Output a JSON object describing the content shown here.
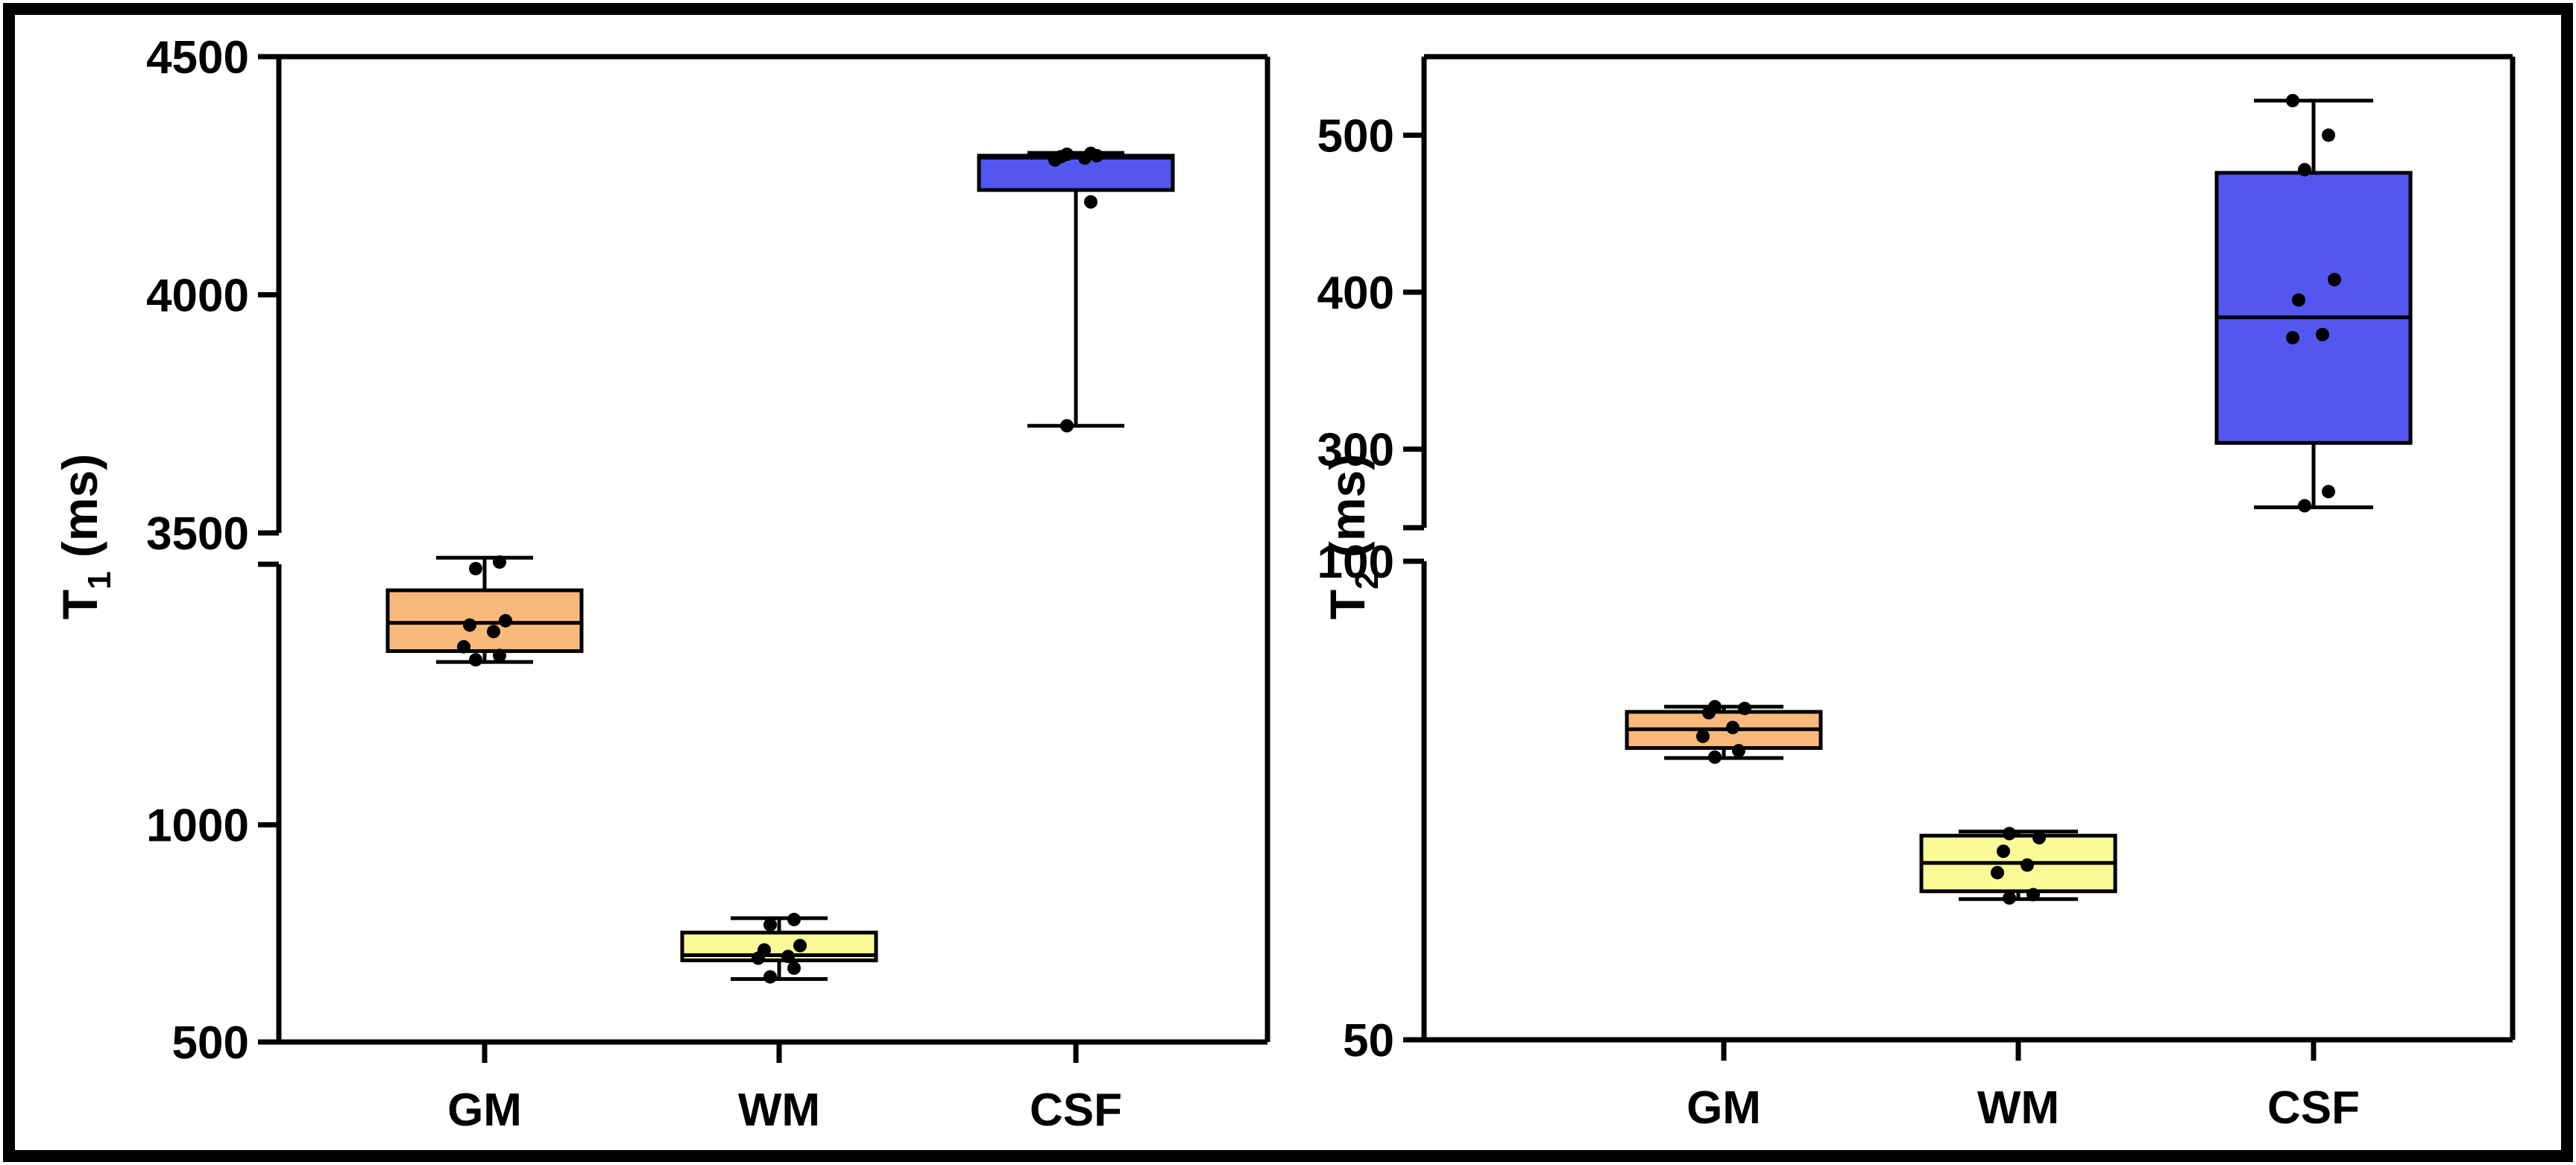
{
  "colors": {
    "GM": "#f9b97a",
    "WM": "#fafa98",
    "CSF": "#5357f0",
    "frame": "#000000"
  },
  "chart_data": [
    {
      "type": "box",
      "ylabel_main": "T",
      "ylabel_sub": "1",
      "ylabel_unit": " (ms)",
      "categories": [
        "GM",
        "WM",
        "CSF"
      ],
      "y_scale": "broken",
      "y_lower_segment": {
        "range": [
          500,
          1600
        ],
        "ticks": [
          500,
          1000
        ]
      },
      "y_upper_segment": {
        "range": [
          3500,
          4500
        ],
        "ticks": [
          3500,
          4000,
          4500
        ]
      },
      "boxes": [
        {
          "category": "GM",
          "min": 1375,
          "q1": 1400,
          "median": 1465,
          "q3": 1540,
          "max": 1615,
          "points": [
            1380,
            1390,
            1410,
            1445,
            1460,
            1470,
            1590,
            1605
          ]
        },
        {
          "category": "WM",
          "min": 645,
          "q1": 688,
          "median": 700,
          "q3": 752,
          "max": 785,
          "points": [
            650,
            670,
            693,
            697,
            712,
            722,
            770,
            782
          ]
        },
        {
          "category": "CSF",
          "min": 3725,
          "q1": 4220,
          "median": 4288,
          "q3": 4292,
          "max": 4298,
          "points": [
            3725,
            4195,
            4283,
            4287,
            4290,
            4292,
            4295,
            4297
          ]
        }
      ]
    },
    {
      "type": "box",
      "ylabel_main": "T",
      "ylabel_sub": "2",
      "ylabel_unit": " (ms)",
      "categories": [
        "GM",
        "WM",
        "CSF"
      ],
      "y_scale": "broken-log",
      "y_lower_segment": {
        "range": [
          50,
          100
        ],
        "ticks": [
          50,
          100
        ],
        "scale": "log"
      },
      "y_upper_segment": {
        "range": [
          250,
          550
        ],
        "ticks": [
          300,
          400,
          500
        ]
      },
      "boxes": [
        {
          "category": "GM",
          "min": 75.2,
          "q1": 76.3,
          "median": 78.4,
          "q3": 80.4,
          "max": 81.0,
          "points": [
            75.3,
            76.0,
            77.6,
            78.6,
            80.3,
            80.8,
            81.0
          ]
        },
        {
          "category": "WM",
          "min": 61.3,
          "q1": 62.0,
          "median": 64.6,
          "q3": 67.2,
          "max": 67.6,
          "points": [
            61.4,
            61.7,
            63.7,
            64.4,
            65.7,
            67.0,
            67.4
          ]
        },
        {
          "category": "CSF",
          "min": 263,
          "q1": 304,
          "median": 384,
          "q3": 476,
          "max": 522,
          "points": [
            264,
            273,
            371,
            373,
            395,
            408,
            478,
            500,
            522
          ]
        }
      ]
    }
  ]
}
